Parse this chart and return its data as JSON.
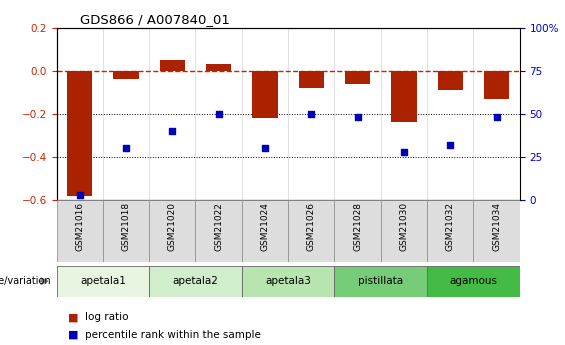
{
  "title": "GDS866 / A007840_01",
  "samples": [
    "GSM21016",
    "GSM21018",
    "GSM21020",
    "GSM21022",
    "GSM21024",
    "GSM21026",
    "GSM21028",
    "GSM21030",
    "GSM21032",
    "GSM21034"
  ],
  "log_ratio": [
    -0.58,
    -0.04,
    0.05,
    0.03,
    -0.22,
    -0.08,
    -0.06,
    -0.24,
    -0.09,
    -0.13
  ],
  "percentile_rank": [
    3,
    30,
    40,
    50,
    30,
    50,
    48,
    28,
    32,
    48
  ],
  "ylim_left": [
    -0.6,
    0.2
  ],
  "ylim_right": [
    0,
    100
  ],
  "yticks_left": [
    -0.6,
    -0.4,
    -0.2,
    0.0,
    0.2
  ],
  "yticks_right": [
    0,
    25,
    50,
    75,
    100
  ],
  "bar_color": "#aa2200",
  "scatter_color": "#0000bb",
  "dashed_line_color": "#cc2200",
  "groups": [
    {
      "label": "apetala1",
      "start": 0,
      "end": 2,
      "color": "#e8f5e0"
    },
    {
      "label": "apetala2",
      "start": 2,
      "end": 4,
      "color": "#d0edcc"
    },
    {
      "label": "apetala3",
      "start": 4,
      "end": 6,
      "color": "#b8e4b0"
    },
    {
      "label": "pistillata",
      "start": 6,
      "end": 8,
      "color": "#77cc77"
    },
    {
      "label": "agamous",
      "start": 8,
      "end": 10,
      "color": "#44bb44"
    }
  ],
  "genotype_label": "genotype/variation",
  "legend_bar_label": "log ratio",
  "legend_scatter_label": "percentile rank within the sample",
  "tick_label_color_left": "#cc2200",
  "tick_label_color_right": "#0000cc",
  "sample_box_color": "#dddddd",
  "sample_box_edge": "#888888"
}
